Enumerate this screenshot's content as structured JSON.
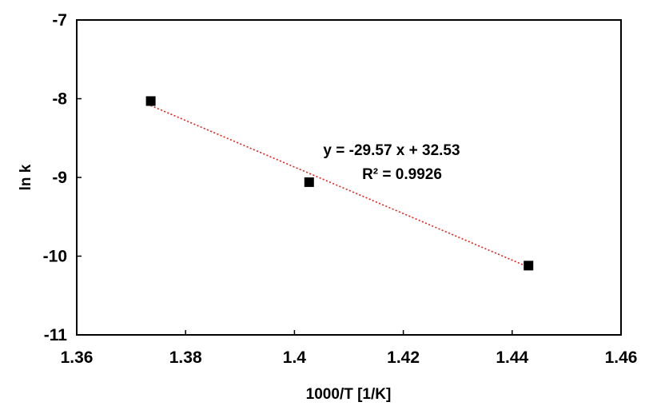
{
  "chart_data": {
    "type": "scatter",
    "title": "",
    "xlabel": "1000/T [1/K]",
    "ylabel": "ln k",
    "xlim": [
      1.36,
      1.46
    ],
    "ylim": [
      -11,
      -7
    ],
    "x_ticks": [
      1.36,
      1.38,
      1.4,
      1.42,
      1.44,
      1.46
    ],
    "x_tick_labels": [
      "1.36",
      "1.38",
      "1.4",
      "1.42",
      "1.44",
      "1.46"
    ],
    "y_ticks": [
      -11,
      -10,
      -9,
      -8,
      -7
    ],
    "y_tick_labels": [
      "-11",
      "-10",
      "-9",
      "-8",
      "-7"
    ],
    "grid": false,
    "legend": "none",
    "series": [
      {
        "marker": "square",
        "color": "#000000",
        "x": [
          1.3736,
          1.4027,
          1.443
        ],
        "y": [
          -8.03,
          -9.06,
          -10.12
        ]
      }
    ],
    "trendline": {
      "type": "linear",
      "slope": -29.57,
      "intercept": 32.53,
      "color": "#e0221a",
      "style": "dotted",
      "x_range": [
        1.3736,
        1.443
      ]
    },
    "annotations": {
      "equation": "y = -29.57 x + 32.53",
      "r_squared": "R² = 0.9926"
    }
  }
}
